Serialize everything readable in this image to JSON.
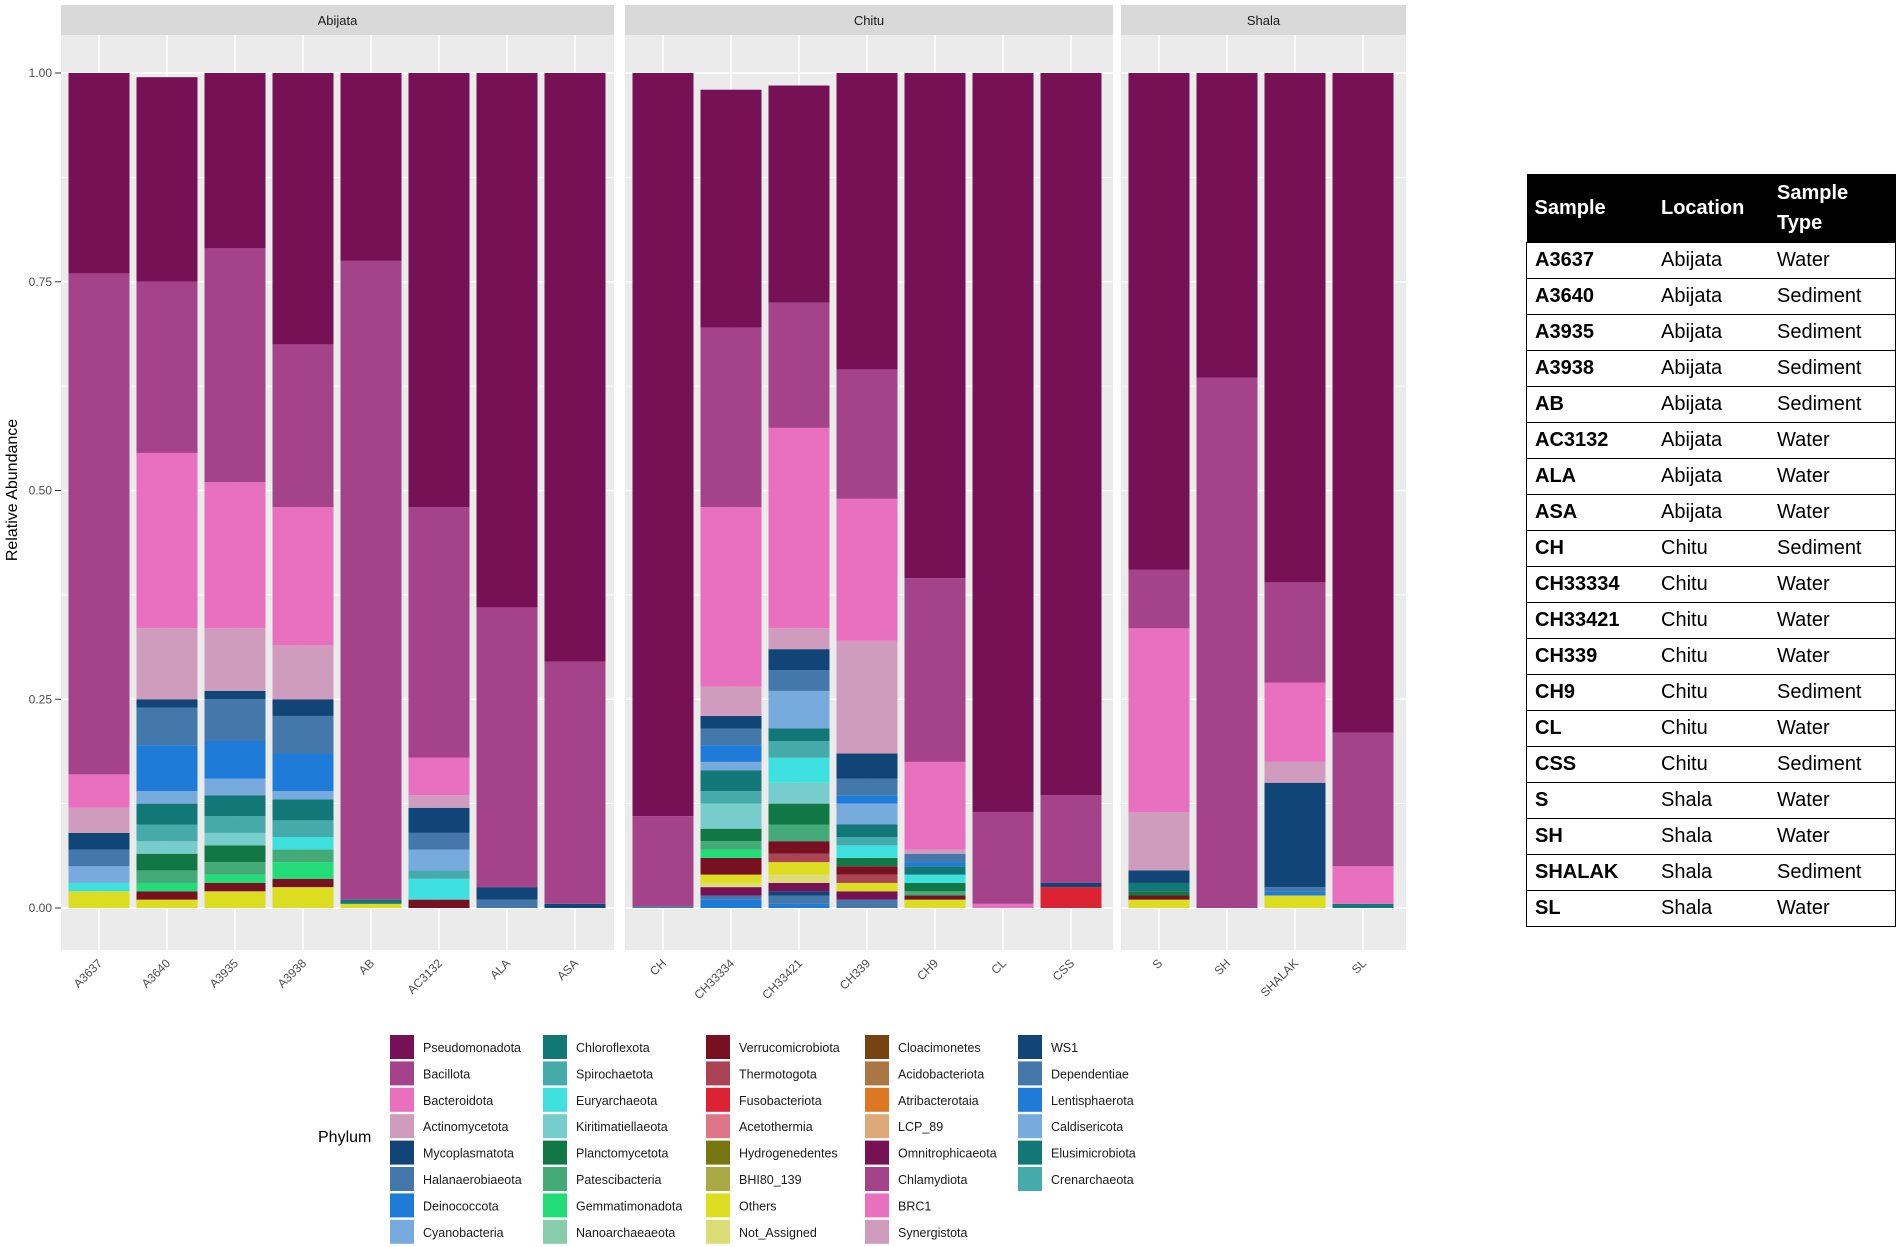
{
  "chart_data": {
    "type": "bar",
    "stacked": true,
    "ylabel": "Relative Abundance",
    "ylim": [
      0,
      1
    ],
    "yticks": [
      "0.00",
      "0.25",
      "0.50",
      "0.75",
      "1.00"
    ],
    "legend_title": "Phylum",
    "facets": [
      {
        "name": "Abijata",
        "samples": [
          {
            "name": "A3637",
            "values": {
              "Pseudomonadota": 0.24,
              "Bacillota": 0.6,
              "Bacteroidota": 0.04,
              "Actinomycetota": 0.03,
              "Mycoplasmatota": 0.02,
              "Halanaerobiaeota": 0.02,
              "Cyanobacteria": 0.02,
              "Euryarchaeota": 0.01,
              "Others": 0.02
            }
          },
          {
            "name": "A3640",
            "values": {
              "Pseudomonadota": 0.245,
              "Bacillota": 0.205,
              "Bacteroidota": 0.21,
              "Actinomycetota": 0.085,
              "Mycoplasmatota": 0.01,
              "Halanaerobiaeota": 0.045,
              "Deinococcota": 0.055,
              "Cyanobacteria": 0.015,
              "Chloroflexota": 0.025,
              "Spirochaetota": 0.02,
              "Kiritimatiellaeota": 0.015,
              "Planctomycetota": 0.02,
              "Patescibacteria": 0.015,
              "Gemmatimonadota": 0.01,
              "Verrucomicrobiota": 0.01,
              "Others": 0.01
            }
          },
          {
            "name": "A3935",
            "values": {
              "Pseudomonadota": 0.21,
              "Bacillota": 0.28,
              "Bacteroidota": 0.175,
              "Actinomycetota": 0.075,
              "Mycoplasmatota": 0.01,
              "Halanaerobiaeota": 0.05,
              "Deinococcota": 0.045,
              "Cyanobacteria": 0.02,
              "Chloroflexota": 0.025,
              "Spirochaetota": 0.02,
              "Kiritimatiellaeota": 0.015,
              "Planctomycetota": 0.02,
              "Patescibacteria": 0.015,
              "Gemmatimonadota": 0.01,
              "Verrucomicrobiota": 0.01,
              "Others": 0.02
            }
          },
          {
            "name": "A3938",
            "values": {
              "Pseudomonadota": 0.325,
              "Bacillota": 0.195,
              "Bacteroidota": 0.165,
              "Actinomycetota": 0.065,
              "Mycoplasmatota": 0.02,
              "Halanaerobiaeota": 0.045,
              "Deinococcota": 0.045,
              "Cyanobacteria": 0.01,
              "Chloroflexota": 0.025,
              "Spirochaetota": 0.02,
              "Euryarchaeota": 0.015,
              "Patescibacteria": 0.015,
              "Gemmatimonadota": 0.02,
              "Verrucomicrobiota": 0.01,
              "Others": 0.025
            }
          },
          {
            "name": "AB",
            "values": {
              "Pseudomonadota": 0.225,
              "Bacillota": 0.765,
              "Chloroflexota": 0.005,
              "Others": 0.005
            }
          },
          {
            "name": "AC3132",
            "values": {
              "Pseudomonadota": 0.52,
              "Bacillota": 0.3,
              "Bacteroidota": 0.045,
              "Actinomycetota": 0.015,
              "Mycoplasmatota": 0.03,
              "Halanaerobiaeota": 0.02,
              "Cyanobacteria": 0.025,
              "Spirochaetota": 0.01,
              "Euryarchaeota": 0.025,
              "Verrucomicrobiota": 0.01
            }
          },
          {
            "name": "ALA",
            "values": {
              "Pseudomonadota": 0.64,
              "Bacillota": 0.335,
              "Mycoplasmatota": 0.015,
              "Halanaerobiaeota": 0.01
            }
          },
          {
            "name": "ASA",
            "values": {
              "Pseudomonadota": 0.705,
              "Bacillota": 0.29,
              "Mycoplasmatota": 0.005
            }
          }
        ]
      },
      {
        "name": "Chitu",
        "samples": [
          {
            "name": "CH",
            "values": {
              "Pseudomonadota": 0.89,
              "Bacillota": 0.108,
              "Halanaerobiaeota": 0.002
            }
          },
          {
            "name": "CH33334",
            "values": {
              "Pseudomonadota": 0.285,
              "Bacillota": 0.215,
              "Bacteroidota": 0.215,
              "Actinomycetota": 0.035,
              "Mycoplasmatota": 0.015,
              "Halanaerobiaeota": 0.02,
              "Deinococcota": 0.02,
              "Cyanobacteria": 0.01,
              "Chloroflexota": 0.025,
              "Spirochaetota": 0.015,
              "Kiritimatiellaeota": 0.03,
              "Planctomycetota": 0.015,
              "Patescibacteria": 0.01,
              "Verrucomicrobiota": 0.02,
              "Gemmatimonadota": 0.01,
              "Others": 0.01,
              "Lentisphaerota": 0.01,
              "Omnitrophicaeota": 0.01,
              "Not_Assigned": 0.005,
              "Dependentiae": 0.005
            }
          },
          {
            "name": "CH33421",
            "values": {
              "Pseudomonadota": 0.26,
              "Bacillota": 0.15,
              "Bacteroidota": 0.24,
              "Actinomycetota": 0.025,
              "Mycoplasmatota": 0.025,
              "Halanaerobiaeota": 0.025,
              "Cyanobacteria": 0.045,
              "Chloroflexota": 0.015,
              "Spirochaetota": 0.02,
              "Euryarchaeota": 0.03,
              "Kiritimatiellaeota": 0.025,
              "Planctomycetota": 0.025,
              "Patescibacteria": 0.02,
              "Verrucomicrobiota": 0.015,
              "Thermotogota": 0.01,
              "Others": 0.015,
              "Not_Assigned": 0.01,
              "Omnitrophicaeota": 0.01,
              "Dependentiae": 0.01,
              "Lentisphaerota": 0.005,
              "WS1": 0.005
            }
          },
          {
            "name": "CH339",
            "values": {
              "Pseudomonadota": 0.355,
              "Bacillota": 0.155,
              "Bacteroidota": 0.17,
              "Actinomycetota": 0.135,
              "Mycoplasmatota": 0.03,
              "Halanaerobiaeota": 0.02,
              "Cyanobacteria": 0.025,
              "Euryarchaeota": 0.015,
              "Chloroflexota": 0.015,
              "Spirochaetota": 0.01,
              "Planctomycetota": 0.01,
              "Verrucomicrobiota": 0.01,
              "Thermotogota": 0.01,
              "Others": 0.01,
              "Omnitrophicaeota": 0.01,
              "Deinococcota": 0.01,
              "Dependentiae": 0.01
            }
          },
          {
            "name": "CH9",
            "values": {
              "Pseudomonadota": 0.605,
              "Bacillota": 0.22,
              "Bacteroidota": 0.105,
              "Actinomycetota": 0.005,
              "Halanaerobiaeota": 0.01,
              "Chloroflexota": 0.01,
              "Euryarchaeota": 0.01,
              "Planctomycetota": 0.01,
              "Patescibacteria": 0.005,
              "Others": 0.01,
              "Verrucomicrobiota": 0.005,
              "Deinococcota": 0.005
            }
          },
          {
            "name": "CL",
            "values": {
              "Pseudomonadota": 0.885,
              "Bacillota": 0.11,
              "Bacteroidota": 0.005
            }
          },
          {
            "name": "CSS",
            "values": {
              "Pseudomonadota": 0.865,
              "Bacillota": 0.105,
              "Fusobacteriota": 0.025,
              "Mycoplasmatota": 0.005
            }
          }
        ]
      },
      {
        "name": "Shala",
        "samples": [
          {
            "name": "S",
            "values": {
              "Pseudomonadota": 0.595,
              "Bacillota": 0.07,
              "Bacteroidota": 0.22,
              "Actinomycetota": 0.07,
              "Mycoplasmatota": 0.015,
              "Chloroflexota": 0.01,
              "Planctomycetota": 0.005,
              "Verrucomicrobiota": 0.005,
              "Others": 0.01
            }
          },
          {
            "name": "SH",
            "values": {
              "Pseudomonadota": 0.365,
              "Bacillota": 0.635
            }
          },
          {
            "name": "SHALAK",
            "values": {
              "Pseudomonadota": 0.61,
              "Bacillota": 0.12,
              "Bacteroidota": 0.095,
              "Actinomycetota": 0.025,
              "Mycoplasmatota": 0.125,
              "Halanaerobiaeota": 0.005,
              "Deinococcota": 0.005,
              "Others": 0.015
            }
          },
          {
            "name": "SL",
            "values": {
              "Pseudomonadota": 0.79,
              "Bacillota": 0.16,
              "Bacteroidota": 0.045,
              "Chloroflexota": 0.005
            }
          }
        ]
      }
    ],
    "phyla": [
      {
        "name": "Pseudomonadota",
        "color": "#771155"
      },
      {
        "name": "Bacillota",
        "color": "#A5438A"
      },
      {
        "name": "Bacteroidota",
        "color": "#E970BE"
      },
      {
        "name": "Actinomycetota",
        "color": "#D09CBE"
      },
      {
        "name": "Mycoplasmatota",
        "color": "#114477"
      },
      {
        "name": "Halanaerobiaeota",
        "color": "#4477AA"
      },
      {
        "name": "Deinococcota",
        "color": "#1F7BD8"
      },
      {
        "name": "Cyanobacteria",
        "color": "#77AADD"
      },
      {
        "name": "Chloroflexota",
        "color": "#117777"
      },
      {
        "name": "Spirochaetota",
        "color": "#44AAAA"
      },
      {
        "name": "Euryarchaeota",
        "color": "#3FE0E0"
      },
      {
        "name": "Kiritimatiellaeota",
        "color": "#77CCCC"
      },
      {
        "name": "Planctomycetota",
        "color": "#117744"
      },
      {
        "name": "Patescibacteria",
        "color": "#44AA77"
      },
      {
        "name": "Gemmatimonadota",
        "color": "#22DD77"
      },
      {
        "name": "Nanoarchaeaeota",
        "color": "#88CCAA"
      },
      {
        "name": "Verrucomicrobiota",
        "color": "#771122"
      },
      {
        "name": "Thermotogota",
        "color": "#AA4455"
      },
      {
        "name": "Fusobacteriota",
        "color": "#DD2233"
      },
      {
        "name": "Acetothermia",
        "color": "#DD7788"
      },
      {
        "name": "Hydrogenedentes",
        "color": "#777711"
      },
      {
        "name": "BHI80_139",
        "color": "#AAAA44"
      },
      {
        "name": "Others",
        "color": "#DDDD22"
      },
      {
        "name": "Not_Assigned",
        "color": "#DDDD77"
      },
      {
        "name": "Cloacimonetes",
        "color": "#774411"
      },
      {
        "name": "Acidobacteriota",
        "color": "#AA7744"
      },
      {
        "name": "Atribacterotaia",
        "color": "#DD7722"
      },
      {
        "name": "LCP_89",
        "color": "#DDAA77"
      },
      {
        "name": "Omnitrophicaeota",
        "color": "#771155"
      },
      {
        "name": "Chlamydiota",
        "color": "#A5438A"
      },
      {
        "name": "BRC1",
        "color": "#E970BE"
      },
      {
        "name": "Synergistota",
        "color": "#D09CBE"
      },
      {
        "name": "WS1",
        "color": "#114477"
      },
      {
        "name": "Dependentiae",
        "color": "#4477AA"
      },
      {
        "name": "Lentisphaerota",
        "color": "#1F7BD8"
      },
      {
        "name": "Caldisericota",
        "color": "#77AADD"
      },
      {
        "name": "Elusimicrobiota",
        "color": "#117777"
      },
      {
        "name": "Crenarchaeota",
        "color": "#44AAAA"
      }
    ]
  },
  "sample_table": {
    "headers": [
      "Sample",
      "Location",
      "Sample Type"
    ],
    "rows": [
      [
        "A3637",
        "Abijata",
        "Water"
      ],
      [
        "A3640",
        "Abijata",
        "Sediment"
      ],
      [
        "A3935",
        "Abijata",
        "Sediment"
      ],
      [
        "A3938",
        "Abijata",
        "Sediment"
      ],
      [
        "AB",
        "Abijata",
        "Sediment"
      ],
      [
        "AC3132",
        "Abijata",
        "Water"
      ],
      [
        "ALA",
        "Abijata",
        "Water"
      ],
      [
        "ASA",
        "Abijata",
        "Water"
      ],
      [
        "CH",
        "Chitu",
        "Sediment"
      ],
      [
        "CH33334",
        "Chitu",
        "Water"
      ],
      [
        "CH33421",
        "Chitu",
        "Water"
      ],
      [
        "CH339",
        "Chitu",
        "Water"
      ],
      [
        "CH9",
        "Chitu",
        "Sediment"
      ],
      [
        "CL",
        "Chitu",
        "Water"
      ],
      [
        "CSS",
        "Chitu",
        "Sediment"
      ],
      [
        "S",
        "Shala",
        "Water"
      ],
      [
        "SH",
        "Shala",
        "Water"
      ],
      [
        "SHALAK",
        "Shala",
        "Sediment"
      ],
      [
        "SL",
        "Shala",
        "Water"
      ]
    ]
  }
}
